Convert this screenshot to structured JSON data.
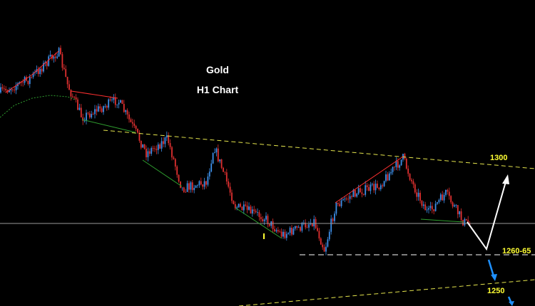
{
  "title": "Gold",
  "subtitle": "H1 Chart",
  "levels": [
    {
      "label": "1300"
    },
    {
      "label": "1260-65"
    },
    {
      "label": "1250"
    }
  ]
}
